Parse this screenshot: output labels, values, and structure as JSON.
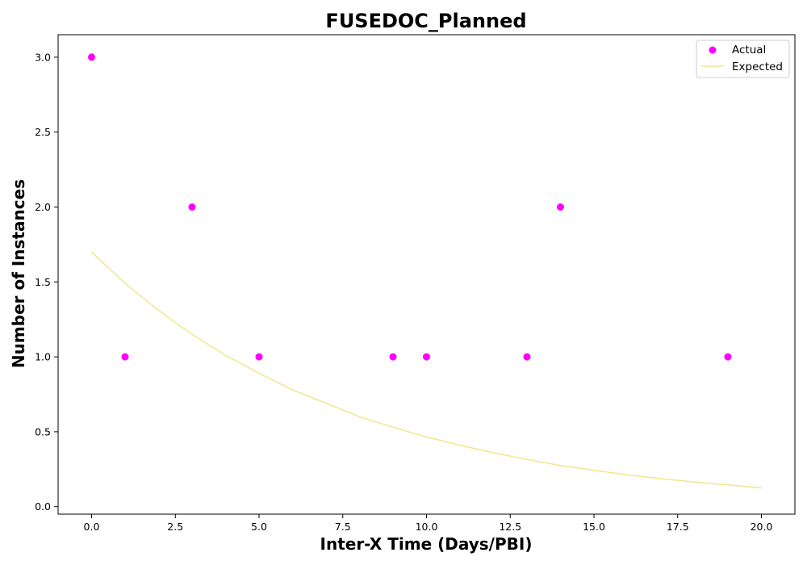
{
  "chart_data": {
    "type": "scatter",
    "title": "FUSEDOC_Planned",
    "xlabel": "Inter-X Time (Days/PBI)",
    "ylabel": "Number of Instances",
    "xlim": [
      -1,
      21
    ],
    "ylim": [
      -0.05,
      3.15
    ],
    "xticks": [
      0.0,
      2.5,
      5.0,
      7.5,
      10.0,
      12.5,
      15.0,
      17.5,
      20.0
    ],
    "xtick_labels": [
      "0.0",
      "2.5",
      "5.0",
      "7.5",
      "10.0",
      "12.5",
      "15.0",
      "17.5",
      "20.0"
    ],
    "yticks": [
      0.0,
      0.5,
      1.0,
      1.5,
      2.0,
      2.5,
      3.0
    ],
    "ytick_labels": [
      "0.0",
      "0.5",
      "1.0",
      "1.5",
      "2.0",
      "2.5",
      "3.0"
    ],
    "grid": false,
    "legend_position": "top-right",
    "series": [
      {
        "name": "Actual",
        "kind": "scatter",
        "color": "#ff00ff",
        "x": [
          0,
          1,
          3,
          5,
          9,
          10,
          13,
          14,
          19
        ],
        "y": [
          3,
          1,
          2,
          1,
          1,
          1,
          1,
          2,
          1
        ]
      },
      {
        "name": "Expected",
        "kind": "line",
        "color": "#f0e68c",
        "x": [
          0,
          1,
          2,
          3,
          4,
          5,
          6,
          7,
          8,
          9,
          10,
          11,
          12,
          13,
          14,
          15,
          16,
          17,
          18,
          19,
          20
        ],
        "y": [
          1.7,
          1.49,
          1.31,
          1.15,
          1.01,
          0.89,
          0.78,
          0.69,
          0.6,
          0.53,
          0.465,
          0.41,
          0.36,
          0.315,
          0.275,
          0.243,
          0.213,
          0.187,
          0.165,
          0.145,
          0.125
        ]
      }
    ]
  }
}
